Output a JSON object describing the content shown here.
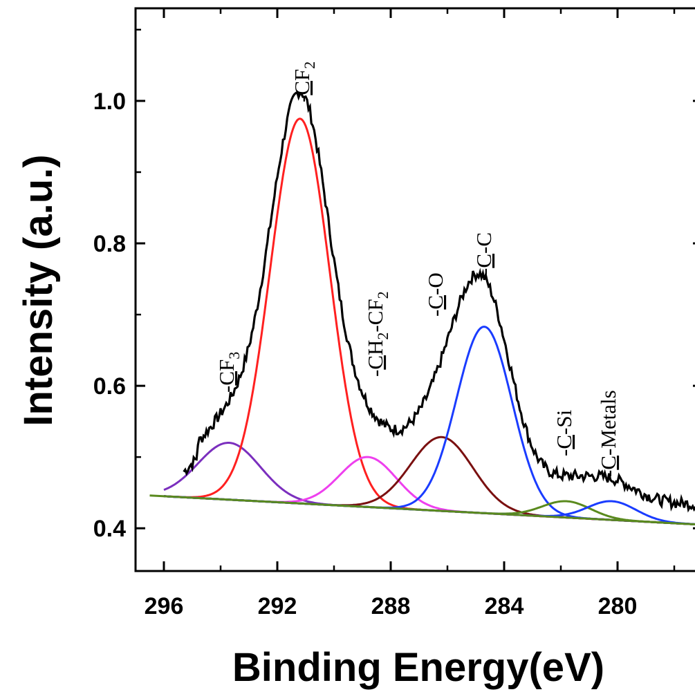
{
  "chart_data": {
    "type": "line",
    "xlabel": "Binding Energy(eV)",
    "ylabel": "Intensity (a.u.)",
    "xlim": [
      297,
      277
    ],
    "ylim": [
      0.34,
      1.13
    ],
    "x_reversed": true,
    "grid": false,
    "x_ticks": [
      296,
      292,
      288,
      284,
      280
    ],
    "x_tick_labels": [
      "296",
      "292",
      "288",
      "284",
      "280"
    ],
    "y_ticks": [
      0.4,
      0.6,
      0.8,
      1.0
    ],
    "y_tick_labels": [
      "0.4",
      "0.6",
      "0.8",
      "1.0"
    ],
    "background": {
      "y296": 0.445,
      "y277": 0.405,
      "color": "#5a8a1e"
    },
    "components": [
      {
        "label": "-CF3",
        "center": 293.7,
        "height": 0.52,
        "sigma": 1.1,
        "color": "#7b2fbe"
      },
      {
        "label": "-CF2",
        "center": 291.2,
        "height": 0.975,
        "sigma": 1.05,
        "color": "#ff2020"
      },
      {
        "label": "-CH2-CF2",
        "center": 288.8,
        "height": 0.5,
        "sigma": 1.0,
        "color": "#ee40ee"
      },
      {
        "label": "-C-O",
        "center": 286.2,
        "height": 0.528,
        "sigma": 1.1,
        "color": "#7a1010"
      },
      {
        "label": "-C-C",
        "center": 284.7,
        "height": 0.683,
        "sigma": 0.98,
        "color": "#1a3cff"
      },
      {
        "label": "-C-Si",
        "center": 281.8,
        "height": 0.438,
        "sigma": 0.85,
        "color": "#5a8a1e"
      },
      {
        "label": "-C-Metals",
        "center": 280.2,
        "height": 0.438,
        "sigma": 0.85,
        "color": "#1a3cff"
      }
    ],
    "measured_color": "#000000",
    "annotations": {
      "cf3": {
        "prefix": "-",
        "main": "CF",
        "sub": "3",
        "underline": "C"
      },
      "cf2": {
        "prefix": "-",
        "main": "CF",
        "sub": "2",
        "underline": "C"
      },
      "ch2cf2": {
        "text": "-CH2-CF2"
      },
      "co": {
        "text": "-C-O"
      },
      "cc": {
        "text": "-C-C"
      },
      "csi": {
        "text": "-C-Si"
      },
      "cmetals": {
        "text": "-C-Metals"
      }
    }
  }
}
